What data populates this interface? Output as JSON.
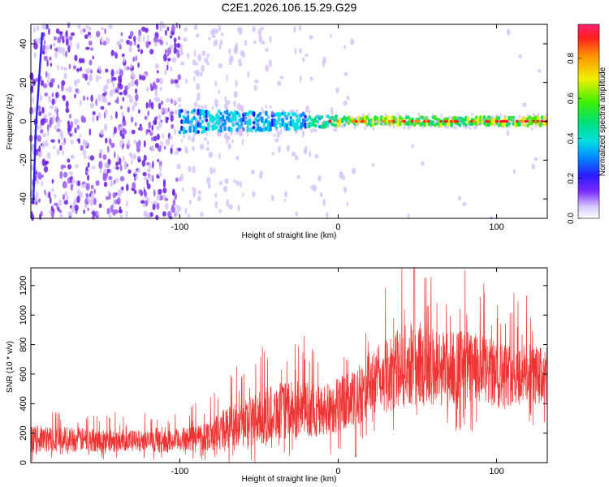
{
  "page_title": "C2E1.2026.106.15.29.G29",
  "chart_data": [
    {
      "type": "heatmap",
      "xlabel": "Height of straight line (km)",
      "ylabel": "Frequency (Hz)",
      "xlim": [
        -194,
        132
      ],
      "ylim": [
        -50,
        50
      ],
      "x_ticks": [
        -100,
        0,
        100
      ],
      "x_tick_labels": [
        "-100",
        "0",
        "100"
      ],
      "y_ticks": [
        -40,
        -20,
        0,
        20,
        40
      ],
      "y_tick_labels": [
        "-40",
        "-20",
        "0",
        "20",
        "40"
      ],
      "colorbar": {
        "label": "Normalized spectral amplitude",
        "range": [
          0,
          0.97
        ],
        "ticks": [
          0.0,
          0.2,
          0.4,
          0.6,
          0.8
        ],
        "tick_labels": [
          "0.0",
          "0.2",
          "0.4",
          "0.6",
          "0.8"
        ]
      },
      "features": [
        {
          "x_range": [
            -194,
            -100
          ],
          "freq_range": [
            -50,
            50
          ],
          "level": "noise ~0.1-0.2"
        },
        {
          "x_range": [
            -100,
            -20
          ],
          "center_freq": 0,
          "level": "0.3-0.5"
        },
        {
          "x_range": [
            -20,
            132
          ],
          "center_freq": 0,
          "level": "up to 0.95"
        }
      ]
    },
    {
      "type": "line",
      "xlabel": "Height of straight line (km)",
      "ylabel": "SNR (10 * v/v)",
      "xlim": [
        -194,
        132
      ],
      "ylim": [
        0,
        1320
      ],
      "x_ticks": [
        -100,
        0,
        100
      ],
      "x_tick_labels": [
        "-100",
        "0",
        "100"
      ],
      "y_ticks": [
        0,
        200,
        400,
        600,
        800,
        1000,
        1200
      ],
      "y_tick_labels": [
        "0",
        "200",
        "400",
        "600",
        "800",
        "1000",
        "1200"
      ],
      "series": [
        {
          "name": "SNR",
          "color": "#ee3333",
          "x_anchor": [
            -194,
            -170,
            -150,
            -130,
            -110,
            -95,
            -80,
            -65,
            -50,
            -40,
            -30,
            -20,
            -10,
            0,
            10,
            20,
            30,
            40,
            50,
            60,
            70,
            80,
            90,
            100,
            110,
            120,
            132
          ],
          "mean_anchor": [
            160,
            160,
            150,
            150,
            140,
            160,
            190,
            260,
            300,
            350,
            350,
            370,
            340,
            400,
            420,
            540,
            580,
            650,
            680,
            650,
            640,
            650,
            620,
            600,
            600,
            600,
            580
          ],
          "amp_anchor": [
            140,
            130,
            120,
            110,
            110,
            130,
            170,
            250,
            280,
            300,
            300,
            290,
            280,
            300,
            300,
            330,
            380,
            420,
            450,
            420,
            400,
            400,
            380,
            350,
            330,
            320,
            300
          ],
          "peak_max": 1320
        }
      ]
    }
  ],
  "colors": {
    "line": "#ee3333",
    "axis": "#000000"
  }
}
